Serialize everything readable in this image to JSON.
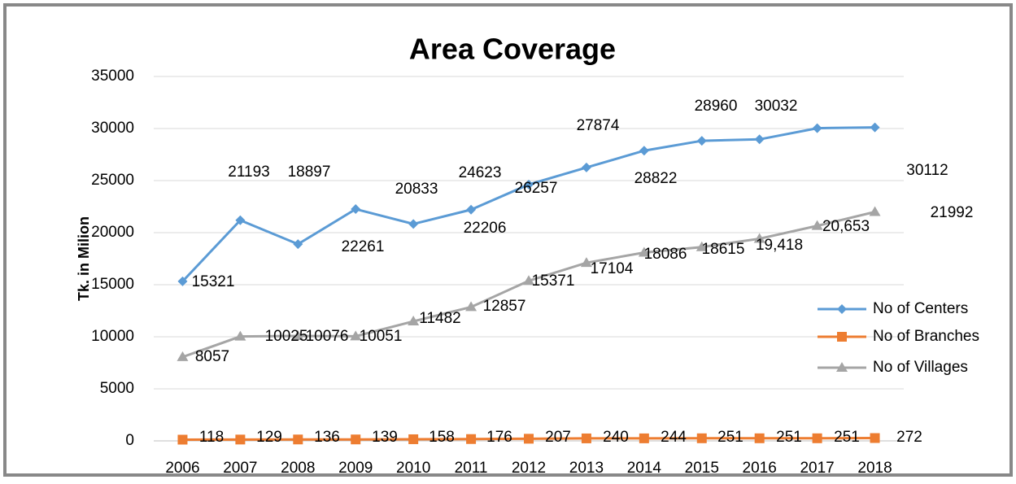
{
  "chart_data": {
    "type": "line",
    "title": "Area Coverage",
    "y_label": "Tk. in Milion",
    "categories": [
      "2006",
      "2007",
      "2008",
      "2009",
      "2010",
      "2011",
      "2012",
      "2013",
      "2014",
      "2015",
      "2016",
      "2017",
      "2018"
    ],
    "ylim": [
      0,
      35000
    ],
    "yticks": [
      0,
      5000,
      10000,
      15000,
      20000,
      25000,
      30000,
      35000
    ],
    "grid": true,
    "legend": "right",
    "series": [
      {
        "name": "No of Centers",
        "color": "#5b9bd5",
        "marker": "diamond",
        "values": [
          15321,
          21193,
          18897,
          22261,
          20833,
          22206,
          24623,
          26257,
          27874,
          28822,
          28960,
          30032,
          30112
        ]
      },
      {
        "name": "No of Branches",
        "color": "#ed7d31",
        "marker": "square",
        "values": [
          118,
          129,
          136,
          139,
          158,
          176,
          207,
          240,
          244,
          251,
          251,
          251,
          272
        ]
      },
      {
        "name": "No of Villages",
        "color": "#a5a5a5",
        "marker": "triangle",
        "values": [
          8057,
          10025,
          10076,
          10051,
          11482,
          12857,
          15371,
          17104,
          18086,
          18615,
          19418,
          20653,
          21992
        ],
        "value_labels": [
          "8057",
          "10025",
          "10076",
          "10051",
          "11482",
          "12857",
          "15371",
          "17104",
          "18086",
          "18615",
          "19,418",
          "20,653",
          "21992"
        ]
      }
    ]
  }
}
